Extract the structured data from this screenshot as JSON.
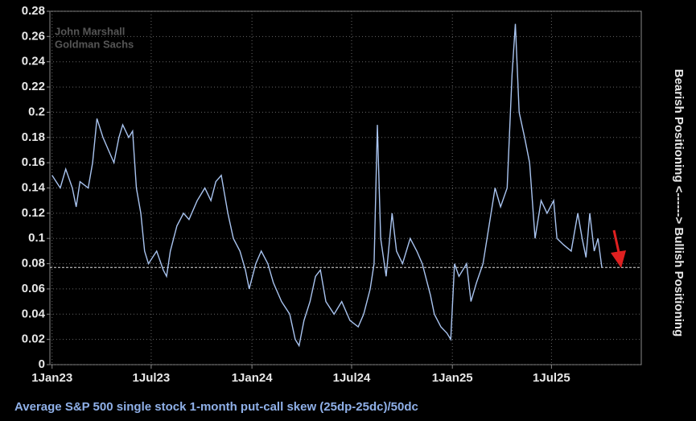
{
  "chart_data": {
    "type": "line",
    "x_label": "Average S&P 500 single stock 1-month put-call skew (25dp-25dc)/50dc",
    "right_label": "Bearish Positioning <------> Bullish Positioning",
    "annotations": [
      "John Marshall",
      "Goldman Sachs"
    ],
    "reference_line": 0.077,
    "grid": true,
    "xlim": [
      "2022-12-28",
      "2025-12-12"
    ],
    "xticks": [
      {
        "value": "2023-01-01",
        "label": "1Jan23"
      },
      {
        "value": "2023-07-01",
        "label": "1Jul23"
      },
      {
        "value": "2024-01-01",
        "label": "1Jan24"
      },
      {
        "value": "2024-07-01",
        "label": "1Jul24"
      },
      {
        "value": "2025-01-01",
        "label": "1Jan25"
      },
      {
        "value": "2025-07-01",
        "label": "1Jul25"
      }
    ],
    "ylim": [
      0,
      0.28
    ],
    "yticks": [
      0,
      0.02,
      0.04,
      0.06,
      0.08,
      0.1,
      0.12,
      0.14,
      0.16,
      0.18,
      0.2,
      0.22,
      0.24,
      0.26,
      0.28
    ],
    "x": [
      "2023-01-01",
      "2023-01-16",
      "2023-01-26",
      "2023-02-07",
      "2023-02-14",
      "2023-02-21",
      "2023-03-08",
      "2023-03-16",
      "2023-03-24",
      "2023-04-04",
      "2023-04-14",
      "2023-04-24",
      "2023-05-03",
      "2023-05-10",
      "2023-05-21",
      "2023-05-28",
      "2023-06-04",
      "2023-06-12",
      "2023-06-19",
      "2023-06-26",
      "2023-07-11",
      "2023-07-23",
      "2023-07-29",
      "2023-08-05",
      "2023-08-17",
      "2023-08-29",
      "2023-09-08",
      "2023-09-23",
      "2023-10-07",
      "2023-10-18",
      "2023-10-27",
      "2023-11-06",
      "2023-11-18",
      "2023-11-28",
      "2023-12-10",
      "2023-12-20",
      "2023-12-27",
      "2024-01-08",
      "2024-01-18",
      "2024-01-30",
      "2024-02-09",
      "2024-02-24",
      "2024-03-10",
      "2024-03-20",
      "2024-03-27",
      "2024-04-05",
      "2024-04-16",
      "2024-04-26",
      "2024-05-05",
      "2024-05-15",
      "2024-05-30",
      "2024-06-13",
      "2024-06-28",
      "2024-07-13",
      "2024-07-23",
      "2024-08-04",
      "2024-08-11",
      "2024-08-17",
      "2024-08-23",
      "2024-09-02",
      "2024-09-13",
      "2024-09-21",
      "2024-10-02",
      "2024-10-16",
      "2024-10-28",
      "2024-11-07",
      "2024-11-22",
      "2024-11-29",
      "2024-12-11",
      "2024-12-22",
      "2024-12-29",
      "2025-01-05",
      "2025-01-13",
      "2025-01-27",
      "2025-02-04",
      "2025-02-14",
      "2025-02-26",
      "2025-03-09",
      "2025-03-20",
      "2025-03-30",
      "2025-04-11",
      "2025-04-20",
      "2025-04-26",
      "2025-05-03",
      "2025-05-13",
      "2025-05-22",
      "2025-06-01",
      "2025-06-12",
      "2025-06-23",
      "2025-07-05",
      "2025-07-11",
      "2025-07-23",
      "2025-08-06",
      "2025-08-18",
      "2025-08-26",
      "2025-09-02",
      "2025-09-09",
      "2025-09-17",
      "2025-09-24",
      "2025-10-01"
    ],
    "series": [
      {
        "name": "Put-call skew",
        "color": "#a9c4f0",
        "values": [
          0.15,
          0.14,
          0.155,
          0.14,
          0.125,
          0.145,
          0.14,
          0.16,
          0.195,
          0.18,
          0.17,
          0.16,
          0.18,
          0.19,
          0.18,
          0.185,
          0.14,
          0.12,
          0.09,
          0.08,
          0.09,
          0.075,
          0.07,
          0.09,
          0.11,
          0.12,
          0.115,
          0.13,
          0.14,
          0.13,
          0.145,
          0.15,
          0.12,
          0.1,
          0.09,
          0.075,
          0.06,
          0.08,
          0.09,
          0.08,
          0.065,
          0.05,
          0.04,
          0.02,
          0.015,
          0.035,
          0.05,
          0.07,
          0.075,
          0.05,
          0.04,
          0.05,
          0.035,
          0.03,
          0.04,
          0.06,
          0.08,
          0.19,
          0.1,
          0.07,
          0.12,
          0.09,
          0.08,
          0.1,
          0.09,
          0.08,
          0.055,
          0.04,
          0.03,
          0.025,
          0.02,
          0.08,
          0.07,
          0.08,
          0.05,
          0.065,
          0.08,
          0.11,
          0.14,
          0.125,
          0.14,
          0.23,
          0.27,
          0.2,
          0.18,
          0.16,
          0.1,
          0.13,
          0.12,
          0.13,
          0.1,
          0.095,
          0.09,
          0.12,
          0.1,
          0.085,
          0.12,
          0.09,
          0.1,
          0.077
        ]
      }
    ]
  }
}
